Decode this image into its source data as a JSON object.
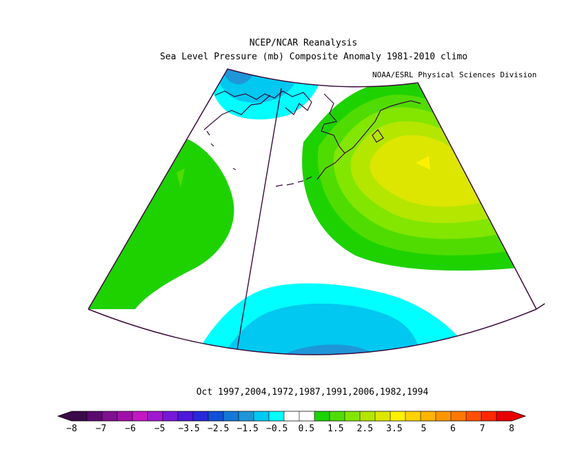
{
  "title": {
    "line1": "NCEP/NCAR Reanalysis",
    "line2": "Sea Level Pressure (mb) Composite Anomaly 1981-2010 climo",
    "credit": "NOAA/ESRL Physical Sciences Division"
  },
  "caption": "Oct 1997,2004,1972,1987,1991,2006,1982,1994",
  "colorbar": {
    "colors": [
      "#3a0a4a",
      "#5a0a6e",
      "#7e1090",
      "#a010a8",
      "#c318c3",
      "#a018d0",
      "#7818d8",
      "#4d18d8",
      "#2828d8",
      "#1050d8",
      "#1478d8",
      "#1e96d8",
      "#00c8f0",
      "#00ffff",
      "#ffffff",
      "#ffffff",
      "#1ed200",
      "#50dc00",
      "#82e600",
      "#b4e600",
      "#dce600",
      "#fff000",
      "#ffd200",
      "#ffb400",
      "#ff9600",
      "#ff7800",
      "#ff5000",
      "#ff2800",
      "#e60000"
    ],
    "ticks": [
      "-8",
      "-7",
      "-6",
      "-5",
      "-3.5",
      "-2.5",
      "-1.5",
      "-0.5",
      "0.5",
      "1.5",
      "2.5",
      "3.5",
      "5",
      "6",
      "7",
      "8"
    ]
  },
  "map": {
    "anomaly_colors": {
      "neg_0_5": "#00ffff",
      "neg_1": "#00c8f0",
      "neg_1_5": "#1e96d8",
      "neg_2": "#1478d8",
      "pos_0_5": "#1ed200",
      "pos_1": "#50dc00",
      "pos_1_5": "#82e600",
      "pos_2": "#b4e600",
      "pos_2_5": "#dce600",
      "pos_3": "#fff000"
    },
    "outline_color": "#4a0a3a"
  }
}
